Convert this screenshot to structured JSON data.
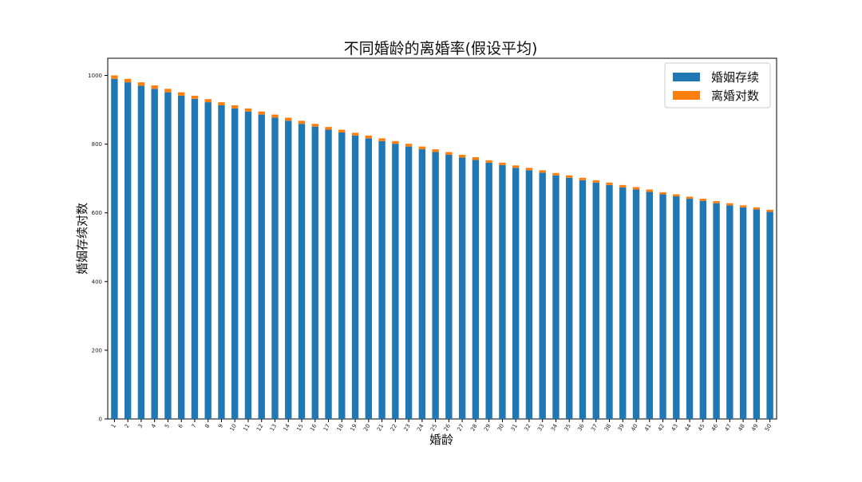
{
  "chart_data": {
    "type": "bar",
    "stacked": true,
    "title": "不同婚龄的离婚率(假设平均)",
    "xlabel": "婚龄",
    "ylabel": "婚姻存续对数",
    "ylim": [
      0,
      1050
    ],
    "yticks": [
      0,
      200,
      400,
      600,
      800,
      1000
    ],
    "grid": false,
    "legend_position": "top-right",
    "categories": [
      "1",
      "2",
      "3",
      "4",
      "5",
      "6",
      "7",
      "8",
      "9",
      "10",
      "11",
      "12",
      "13",
      "14",
      "15",
      "16",
      "17",
      "18",
      "19",
      "20",
      "21",
      "22",
      "23",
      "24",
      "25",
      "26",
      "27",
      "28",
      "29",
      "30",
      "31",
      "32",
      "33",
      "34",
      "35",
      "36",
      "37",
      "38",
      "39",
      "40",
      "41",
      "42",
      "43",
      "44",
      "45",
      "46",
      "47",
      "48",
      "49",
      "50"
    ],
    "series": [
      {
        "name": "婚姻存续",
        "color": "#1f77b4",
        "values": [
          990,
          980,
          970,
          961,
          951,
          941,
          932,
          922,
          913,
          904,
          895,
          886,
          877,
          868,
          859,
          851,
          842,
          834,
          825,
          817,
          809,
          801,
          793,
          785,
          777,
          769,
          761,
          754,
          746,
          739,
          731,
          724,
          717,
          709,
          702,
          695,
          688,
          681,
          674,
          668,
          661,
          654,
          648,
          641,
          635,
          628,
          622,
          616,
          610,
          603
        ]
      },
      {
        "name": "离婚对数",
        "color": "#ff7f0e",
        "values": [
          10,
          10,
          10,
          10,
          10,
          10,
          9,
          9,
          9,
          9,
          9,
          9,
          9,
          9,
          9,
          8,
          8,
          8,
          8,
          8,
          8,
          8,
          8,
          8,
          8,
          8,
          8,
          8,
          7,
          7,
          7,
          7,
          7,
          7,
          7,
          7,
          7,
          7,
          7,
          7,
          7,
          6,
          6,
          6,
          6,
          6,
          6,
          6,
          6,
          6
        ]
      }
    ]
  }
}
